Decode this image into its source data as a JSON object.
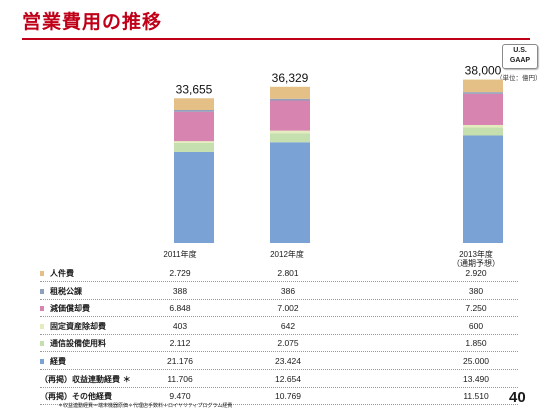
{
  "header": {
    "title": "営業費用の推移",
    "standard_badge": [
      "U.S.",
      "GAAP"
    ],
    "unit": "（単位：億円）"
  },
  "chart_data": {
    "type": "bar",
    "stacked": true,
    "categories": [
      "2011年度",
      "2012年度",
      "2013年度"
    ],
    "category_sublabels": [
      "",
      "",
      "（通期予想）"
    ],
    "totals": [
      "33,655",
      "36,329",
      "38,000"
    ],
    "series": [
      {
        "name": "経費",
        "color": "#7aa2d4",
        "values": [
          21176,
          23424,
          25000
        ]
      },
      {
        "name": "通信設備使用料",
        "color": "#c6dfae",
        "values": [
          2112,
          2075,
          1850
        ]
      },
      {
        "name": "固定資産除却費",
        "color": "#e2ecbc",
        "values": [
          403,
          642,
          600
        ]
      },
      {
        "name": "減価償却費",
        "color": "#d884b0",
        "values": [
          6848,
          7002,
          7250
        ]
      },
      {
        "name": "租税公課",
        "color": "#8fa0bc",
        "values": [
          388,
          386,
          380
        ]
      },
      {
        "name": "人件費",
        "color": "#e4bf86",
        "values": [
          2729,
          2801,
          2920
        ]
      }
    ],
    "ylim": [
      0,
      40000
    ]
  },
  "table": {
    "rows": [
      {
        "label": "人件費",
        "color": "#e4bf86",
        "values": [
          "2.729",
          "2.801",
          "2.920"
        ]
      },
      {
        "label": "租税公課",
        "color": "#8fa0bc",
        "values": [
          "388",
          "386",
          "380"
        ]
      },
      {
        "label": "減価償却費",
        "color": "#d884b0",
        "values": [
          "6.848",
          "7.002",
          "7.250"
        ]
      },
      {
        "label": "固定資産除却費",
        "color": "#e2ecbc",
        "values": [
          "403",
          "642",
          "600"
        ]
      },
      {
        "label": "通信設備使用料",
        "color": "#c6dfae",
        "values": [
          "2.112",
          "2.075",
          "1.850"
        ]
      },
      {
        "label": "経費",
        "color": "#7aa2d4",
        "values": [
          "21.176",
          "23.424",
          "25.000"
        ]
      },
      {
        "label": "（再掲）収益連動経費 ＊",
        "color": "",
        "values": [
          "11.706",
          "12.654",
          "13.490"
        ]
      },
      {
        "label": "（再掲）その他経費",
        "color": "",
        "values": [
          "9.470",
          "10.769",
          "11.510"
        ]
      }
    ]
  },
  "footnote": "＊収益連動経費＝端末機器原価＋代理店手数料＋ロイヤリティプログラム経費",
  "page_number": "40"
}
